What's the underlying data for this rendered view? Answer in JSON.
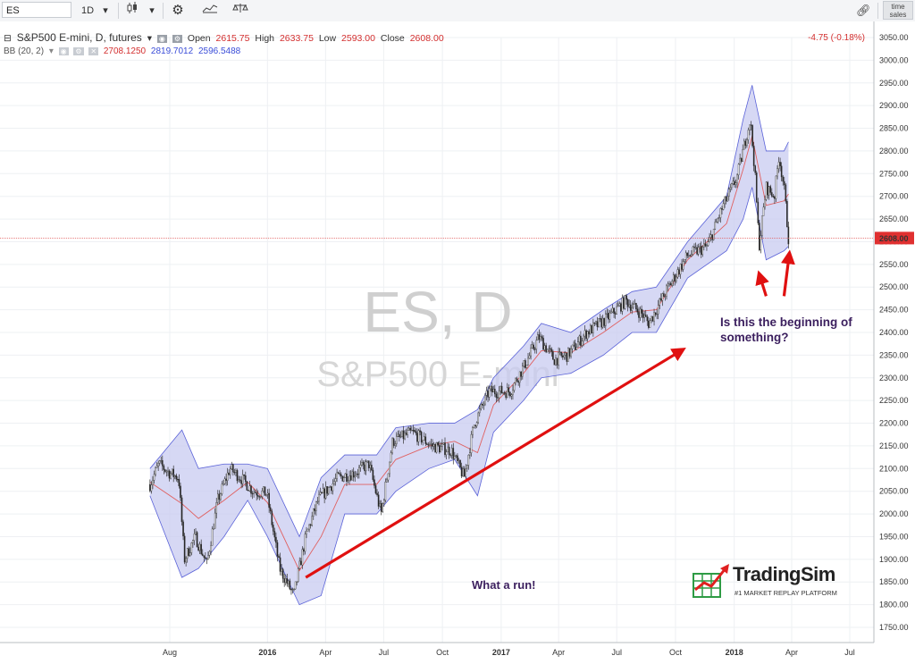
{
  "toolbar": {
    "symbol": "ES",
    "interval": "1D",
    "time_sales": "time sales",
    "icons": [
      "chevron-down-icon",
      "candlestick-icon",
      "chevron-down-icon",
      "gear-icon",
      "indicators-icon",
      "compare-icon",
      "link-icon"
    ]
  },
  "legend": {
    "title": "S&P500 E-mini, D, futures",
    "open_label": "Open",
    "open": "2615.75",
    "high_label": "High",
    "high": "2633.75",
    "low_label": "Low",
    "low": "2593.00",
    "close_label": "Close",
    "close": "2608.00",
    "change": "-4.75 (-0.18%)",
    "bb_label": "BB (20, 2)",
    "bb_mid": "2708.1250",
    "bb_upper": "2819.7012",
    "bb_lower": "2596.5488"
  },
  "watermark": {
    "symbol": "ES, D",
    "name": "S&P500 E-mini"
  },
  "annotations": {
    "question": "Is this the beginning of something?",
    "run": "What a run!"
  },
  "logo": {
    "name": "TradingSim",
    "tagline": "#1 MARKET REPLAY PLATFORM"
  },
  "price_label": "2608.00",
  "colors": {
    "band_fill": "#c8cbf0",
    "band_line": "#5a62d8",
    "mid_line": "#e06060",
    "price_line": "#e05555",
    "arrow": "#e01010",
    "annotation": "#3b1f5e"
  },
  "chart_data": {
    "type": "line",
    "title": "S&P500 E-mini, D, futures",
    "y_axis": {
      "ylim": [
        1750,
        3050
      ],
      "ticks": [
        1750,
        1800,
        1850,
        1900,
        1950,
        2000,
        2050,
        2100,
        2150,
        2200,
        2250,
        2300,
        2350,
        2400,
        2450,
        2500,
        2550,
        2600,
        2650,
        2700,
        2750,
        2800,
        2850,
        2900,
        2950,
        3000,
        3050
      ],
      "side": "right"
    },
    "x_axis": {
      "tick_labels": [
        "Aug",
        "2016",
        "Apr",
        "Jul",
        "Oct",
        "2017",
        "Apr",
        "Jul",
        "Oct",
        "2018",
        "Apr",
        "Jul"
      ]
    },
    "last_price": 2608.0,
    "series": [
      {
        "name": "Close",
        "x": [
          "2015-07-01",
          "2015-07-15",
          "2015-08-01",
          "2015-08-15",
          "2015-08-24",
          "2015-09-10",
          "2015-09-28",
          "2015-10-15",
          "2015-11-03",
          "2015-11-20",
          "2015-12-10",
          "2015-12-31",
          "2016-01-20",
          "2016-02-11",
          "2016-03-01",
          "2016-03-20",
          "2016-04-20",
          "2016-05-15",
          "2016-06-08",
          "2016-06-27",
          "2016-07-15",
          "2016-08-15",
          "2016-09-15",
          "2016-10-15",
          "2016-11-04",
          "2016-11-20",
          "2016-12-13",
          "2017-01-15",
          "2017-02-15",
          "2017-03-01",
          "2017-03-25",
          "2017-04-15",
          "2017-05-15",
          "2017-06-15",
          "2017-07-15",
          "2017-08-10",
          "2017-08-20",
          "2017-09-20",
          "2017-10-20",
          "2017-11-20",
          "2017-12-15",
          "2018-01-05",
          "2018-01-26",
          "2018-02-02",
          "2018-02-09",
          "2018-02-20",
          "2018-03-05",
          "2018-03-12",
          "2018-03-20",
          "2018-03-27"
        ],
        "values": [
          2065,
          2110,
          2090,
          2080,
          1900,
          1950,
          1890,
          2030,
          2100,
          2080,
          2050,
          2045,
          1880,
          1820,
          1950,
          2030,
          2080,
          2090,
          2110,
          2000,
          2160,
          2180,
          2150,
          2140,
          2080,
          2200,
          2270,
          2270,
          2350,
          2390,
          2340,
          2350,
          2400,
          2430,
          2470,
          2440,
          2420,
          2500,
          2570,
          2590,
          2680,
          2740,
          2870,
          2760,
          2590,
          2720,
          2700,
          2790,
          2720,
          2608
        ]
      },
      {
        "name": "BB upper",
        "x": [
          "2015-07-01",
          "2015-08-20",
          "2015-09-15",
          "2015-10-25",
          "2015-12-01",
          "2016-01-01",
          "2016-02-20",
          "2016-03-25",
          "2016-05-01",
          "2016-06-20",
          "2016-07-20",
          "2016-09-10",
          "2016-10-20",
          "2016-11-25",
          "2016-12-20",
          "2017-02-05",
          "2017-03-05",
          "2017-04-20",
          "2017-06-10",
          "2017-07-25",
          "2017-09-01",
          "2017-10-20",
          "2017-12-20",
          "2018-01-15",
          "2018-01-29",
          "2018-02-20",
          "2018-03-20",
          "2018-03-27"
        ],
        "values": [
          2100,
          2185,
          2100,
          2110,
          2110,
          2100,
          1950,
          2080,
          2130,
          2130,
          2190,
          2200,
          2200,
          2230,
          2300,
          2370,
          2420,
          2400,
          2450,
          2490,
          2500,
          2600,
          2700,
          2870,
          2945,
          2800,
          2800,
          2820
        ]
      },
      {
        "name": "BB lower",
        "x": [
          "2015-07-01",
          "2015-08-20",
          "2015-09-15",
          "2015-10-25",
          "2015-12-01",
          "2016-01-01",
          "2016-02-20",
          "2016-03-25",
          "2016-05-01",
          "2016-06-20",
          "2016-07-20",
          "2016-09-10",
          "2016-10-20",
          "2016-11-25",
          "2016-12-20",
          "2017-02-05",
          "2017-03-05",
          "2017-04-20",
          "2017-06-10",
          "2017-07-25",
          "2017-09-01",
          "2017-10-20",
          "2017-12-20",
          "2018-01-15",
          "2018-01-29",
          "2018-02-20",
          "2018-03-20",
          "2018-03-27"
        ],
        "values": [
          2040,
          1860,
          1880,
          1950,
          2030,
          1950,
          1800,
          1820,
          2000,
          2000,
          2050,
          2100,
          2120,
          2040,
          2180,
          2250,
          2300,
          2310,
          2350,
          2400,
          2400,
          2520,
          2580,
          2650,
          2720,
          2560,
          2580,
          2590
        ]
      }
    ]
  }
}
